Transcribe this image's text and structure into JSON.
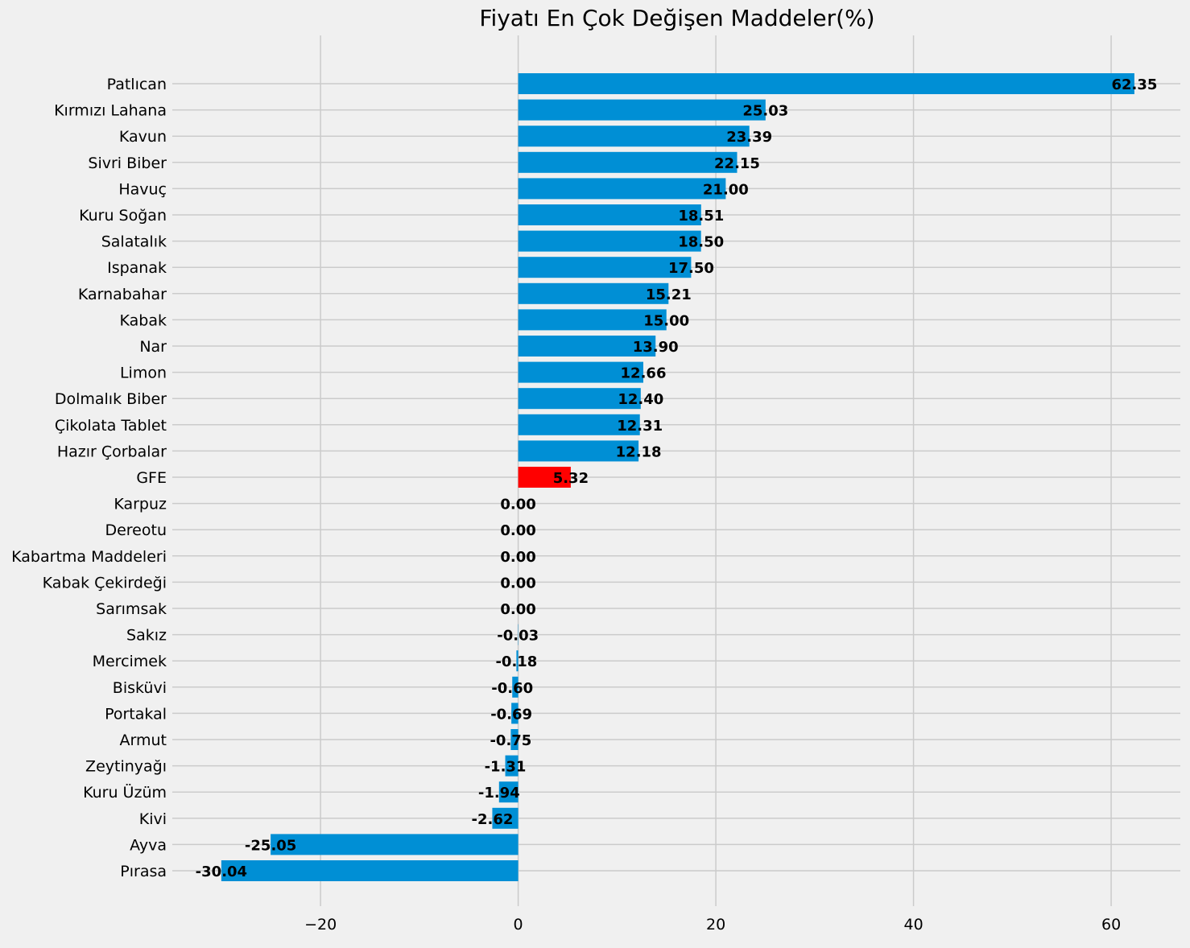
{
  "chart_data": {
    "type": "bar",
    "orientation": "horizontal",
    "title": "Fiyatı En Çok Değişen Maddeler(%)",
    "xlabel": "",
    "ylabel": "",
    "xlim": [
      -35,
      67
    ],
    "xticks": [
      -20,
      0,
      20,
      40,
      60
    ],
    "xtick_labels": [
      "−20",
      "0",
      "20",
      "40",
      "60"
    ],
    "grid": true,
    "colors": {
      "default": "#008fd5",
      "highlight": "#ff0000",
      "background": "#f0f0f0",
      "grid": "#cbcbcb"
    },
    "categories": [
      "Patlıcan",
      "Kırmızı Lahana",
      "Kavun",
      "Sivri Biber",
      "Havuç",
      "Kuru Soğan",
      "Salatalık",
      "Ispanak",
      "Karnabahar",
      "Kabak",
      "Nar",
      "Limon",
      "Dolmalık Biber",
      "Çikolata Tablet",
      "Hazır Çorbalar",
      "GFE",
      "Karpuz",
      "Dereotu",
      "Kabartma Maddeleri",
      "Kabak Çekirdeği",
      "Sarımsak",
      "Sakız",
      "Mercimek",
      "Bisküvi",
      "Portakal",
      "Armut",
      "Zeytinyağı",
      "Kuru Üzüm",
      "Kivi",
      "Ayva",
      "Pırasa"
    ],
    "values": [
      62.35,
      25.03,
      23.39,
      22.15,
      21.0,
      18.51,
      18.5,
      17.5,
      15.21,
      15.0,
      13.9,
      12.66,
      12.4,
      12.31,
      12.18,
      5.32,
      0.0,
      0.0,
      0.0,
      0.0,
      0.0,
      -0.03,
      -0.18,
      -0.6,
      -0.69,
      -0.75,
      -1.31,
      -1.94,
      -2.62,
      -25.05,
      -30.04
    ],
    "value_labels": [
      "62.35",
      "25.03",
      "23.39",
      "22.15",
      "21.00",
      "18.51",
      "18.50",
      "17.50",
      "15.21",
      "15.00",
      "13.90",
      "12.66",
      "12.40",
      "12.31",
      "12.18",
      "5.32",
      "0.00",
      "0.00",
      "0.00",
      "0.00",
      "0.00",
      "-0.03",
      "-0.18",
      "-0.60",
      "-0.69",
      "-0.75",
      "-1.31",
      "-1.94",
      "-2.62",
      "-25.05",
      "-30.04"
    ],
    "highlight_category": "GFE"
  }
}
